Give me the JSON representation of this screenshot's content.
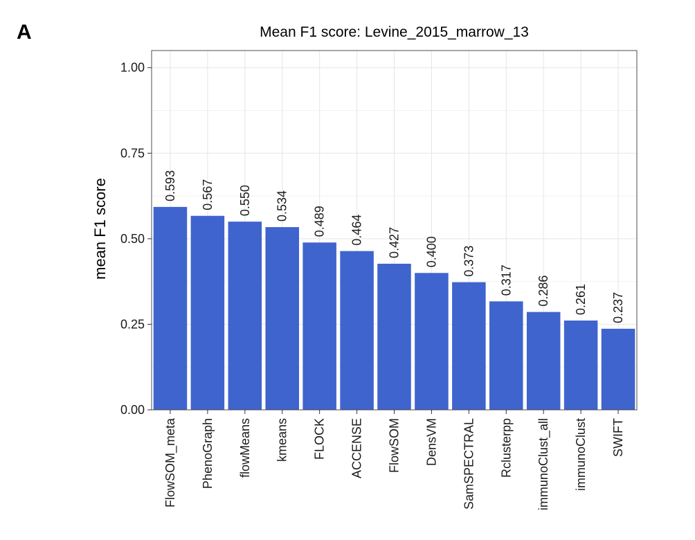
{
  "panel_label": "A",
  "chart_data": {
    "type": "bar",
    "title": "Mean F1 score: Levine_2015_marrow_13",
    "xlabel": "",
    "ylabel": "mean F1 score",
    "ylim": [
      0,
      1.05
    ],
    "yticks": [
      "0.00",
      "0.25",
      "0.50",
      "0.75",
      "1.00"
    ],
    "grid": true,
    "bar_color": "#3f64ce",
    "categories": [
      "FlowSOM_meta",
      "PhenoGraph",
      "flowMeans",
      "kmeans",
      "FLOCK",
      "ACCENSE",
      "FlowSOM",
      "DensVM",
      "SamSPECTRAL",
      "Rclusterpp",
      "immunoClust_all",
      "immunoClust",
      "SWIFT"
    ],
    "values": [
      0.593,
      0.567,
      0.55,
      0.534,
      0.489,
      0.464,
      0.427,
      0.4,
      0.373,
      0.317,
      0.286,
      0.261,
      0.237
    ],
    "data_labels": [
      "0.593",
      "0.567",
      "0.550",
      "0.534",
      "0.489",
      "0.464",
      "0.427",
      "0.400",
      "0.373",
      "0.317",
      "0.286",
      "0.261",
      "0.237"
    ]
  }
}
